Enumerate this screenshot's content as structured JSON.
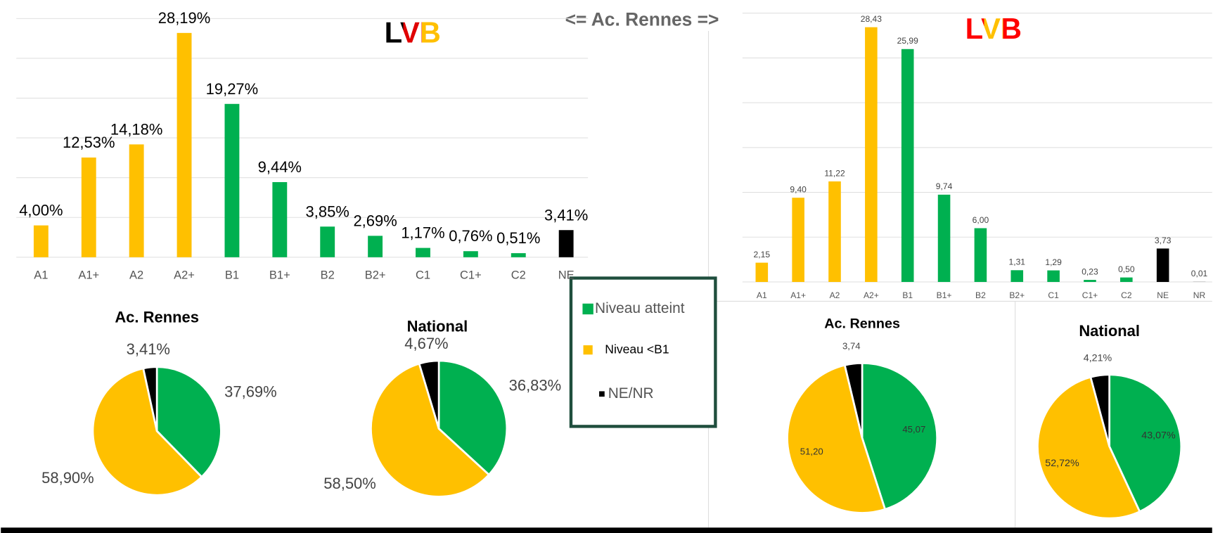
{
  "header": "<= Ac. Rennes =>",
  "legend": [
    {
      "name": "Niveau atteint",
      "color": "#00b050"
    },
    {
      "name": "Niveau <B1",
      "color": "#ffc000"
    },
    {
      "name": "NE/NR",
      "color": "#000000"
    }
  ],
  "chart_data": [
    {
      "type": "bar",
      "title": "LVB",
      "title_colors": [
        "#000000",
        "#e00000",
        "#ffc000"
      ],
      "categories": [
        "A1",
        "A1+",
        "A2",
        "A2+",
        "B1",
        "B1+",
        "B2",
        "B2+",
        "C1",
        "C1+",
        "C2",
        "NE"
      ],
      "values": [
        4.0,
        12.53,
        14.18,
        28.19,
        19.27,
        9.44,
        3.85,
        2.69,
        1.17,
        0.76,
        0.51,
        3.41
      ],
      "value_labels": [
        "4,00%",
        "12,53%",
        "14,18%",
        "28,19%",
        "19,27%",
        "9,44%",
        "3,85%",
        "2,69%",
        "1,17%",
        "0,76%",
        "0,51%",
        "3,41%"
      ],
      "colors": [
        "#ffc000",
        "#ffc000",
        "#ffc000",
        "#ffc000",
        "#00b050",
        "#00b050",
        "#00b050",
        "#00b050",
        "#00b050",
        "#00b050",
        "#00b050",
        "#000000"
      ],
      "ylim": [
        0,
        30
      ],
      "grid_lines": [
        0,
        5,
        10,
        15,
        20,
        25,
        30
      ],
      "grid": true
    },
    {
      "type": "bar",
      "title": "LVB",
      "title_colors": [
        "#ff0000",
        "#ffc000",
        "#ff0000"
      ],
      "categories": [
        "A1",
        "A1+",
        "A2",
        "A2+",
        "B1",
        "B1+",
        "B2",
        "B2+",
        "C1",
        "C1+",
        "C2",
        "NE",
        "NR"
      ],
      "values": [
        2.15,
        9.4,
        11.22,
        28.43,
        25.99,
        9.74,
        6.0,
        1.31,
        1.29,
        0.23,
        0.5,
        3.73,
        0.01
      ],
      "value_labels": [
        "2,15",
        "9,40",
        "11,22",
        "28,43",
        "25,99",
        "9,74",
        "6,00",
        "1,31",
        "1,29",
        "0,23",
        "0,50",
        "3,73",
        "0,01"
      ],
      "colors": [
        "#ffc000",
        "#ffc000",
        "#ffc000",
        "#ffc000",
        "#00b050",
        "#00b050",
        "#00b050",
        "#00b050",
        "#00b050",
        "#00b050",
        "#00b050",
        "#000000",
        "#000000"
      ],
      "ylim": [
        0,
        30
      ],
      "grid_lines": [
        0,
        5,
        10,
        15,
        20,
        25,
        30
      ],
      "grid": true
    },
    {
      "type": "pie",
      "title": "Ac. Rennes",
      "values": [
        37.69,
        58.9,
        3.41
      ],
      "value_labels": [
        "37,69%",
        "58,90%",
        "3,41%"
      ],
      "colors": [
        "#00b050",
        "#ffc000",
        "#000000"
      ],
      "label_position": "outside"
    },
    {
      "type": "pie",
      "title": "National",
      "values": [
        36.83,
        58.5,
        4.67
      ],
      "value_labels": [
        "36,83%",
        "58,50%",
        "4,67%"
      ],
      "colors": [
        "#00b050",
        "#ffc000",
        "#000000"
      ],
      "label_position": "outside"
    },
    {
      "type": "pie",
      "title": "Ac. Rennes",
      "values": [
        45.07,
        51.2,
        3.74
      ],
      "value_labels": [
        "45,07",
        "51,20",
        "3,74"
      ],
      "colors": [
        "#00b050",
        "#ffc000",
        "#000000"
      ],
      "label_position": "inside"
    },
    {
      "type": "pie",
      "title": "National",
      "values": [
        43.07,
        52.72,
        4.21
      ],
      "value_labels": [
        "43,07%",
        "52,72%",
        "4,21%"
      ],
      "colors": [
        "#00b050",
        "#ffc000",
        "#000000"
      ],
      "label_position": "inside"
    }
  ]
}
